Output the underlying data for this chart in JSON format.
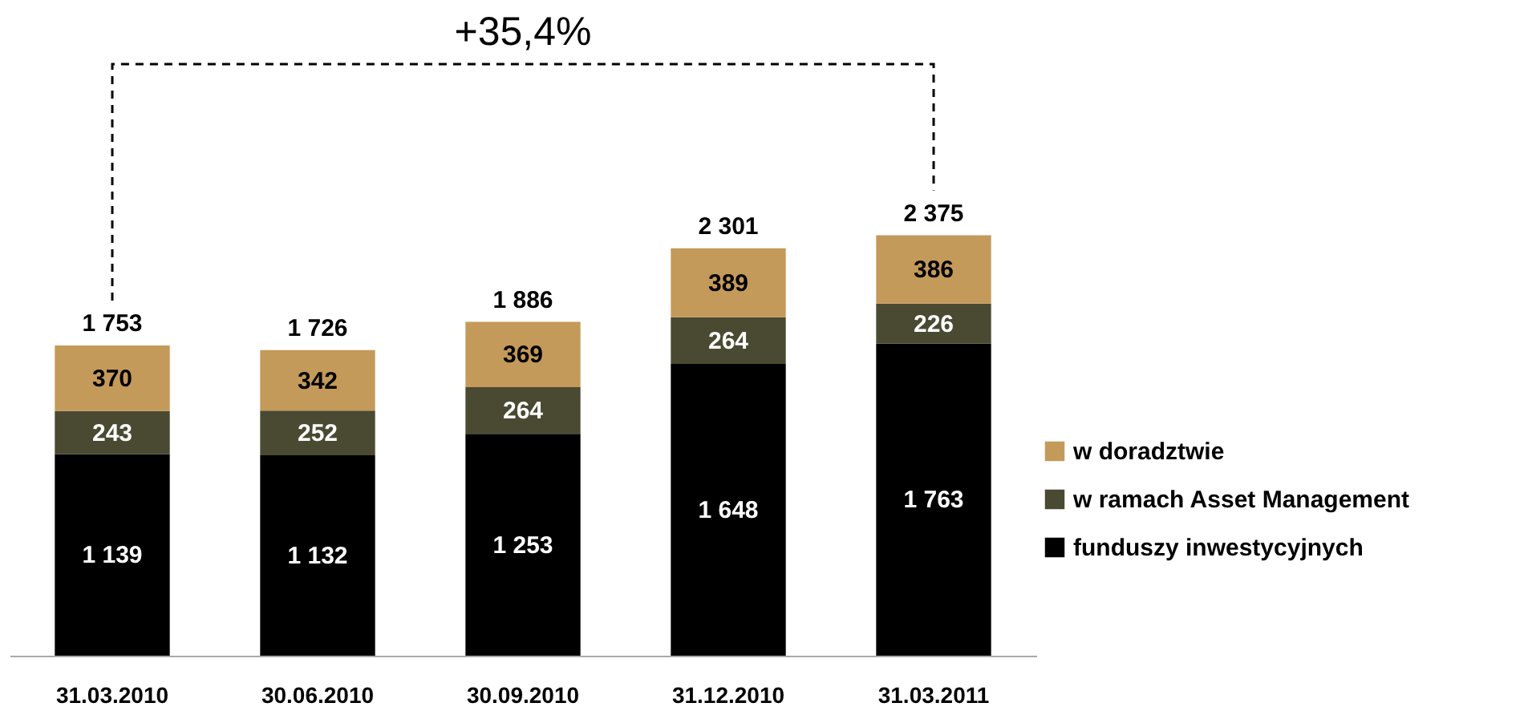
{
  "chart_data": {
    "type": "bar",
    "stacked": true,
    "categories": [
      "31.03.2010",
      "30.06.2010",
      "30.09.2010",
      "31.12.2010",
      "31.03.2011"
    ],
    "series": [
      {
        "name": "funduszy inwestycyjnych",
        "color": "#000000",
        "values": [
          1139,
          1132,
          1253,
          1648,
          1763
        ]
      },
      {
        "name": "w ramach Asset Management",
        "color": "#4a4a32",
        "values": [
          243,
          252,
          264,
          264,
          226
        ]
      },
      {
        "name": "w doradztwie",
        "color": "#c49a5a",
        "values": [
          370,
          342,
          369,
          389,
          386
        ]
      }
    ],
    "totals": [
      "1 753",
      "1 726",
      "1 886",
      "2 301",
      "2 375"
    ],
    "annotations": [
      "+35,4%"
    ],
    "data_labels": true,
    "legend": "right",
    "grid": false
  }
}
